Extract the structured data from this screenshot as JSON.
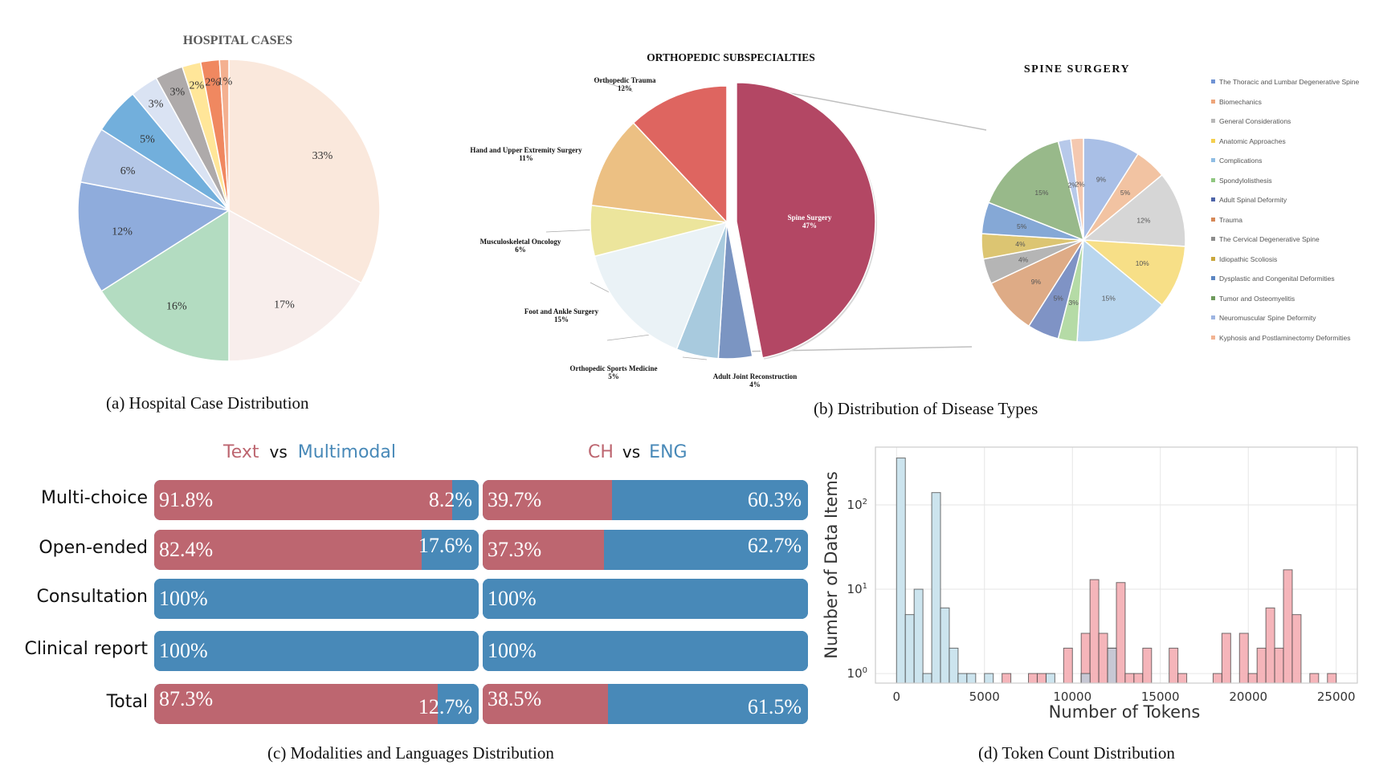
{
  "colors": {
    "text_red": "#bd6670",
    "multimodal_blue": "#4889b8",
    "hist_blue": "#cce4ee",
    "hist_pink": "#f4adb2",
    "hist_overlap": "#c7c8d4"
  },
  "chart_data": [
    {
      "id": "a",
      "type": "pie",
      "title": "HOSPITAL CASES",
      "caption": "(a) Hospital Case Distribution",
      "slices": [
        {
          "label": "33%",
          "value": 33,
          "color": "#fae8dc"
        },
        {
          "label": "17%",
          "value": 17,
          "color": "#f8eeec"
        },
        {
          "label": "16%",
          "value": 16,
          "color": "#b3dcc1"
        },
        {
          "label": "12%",
          "value": 12,
          "color": "#8facdc"
        },
        {
          "label": "6%",
          "value": 6,
          "color": "#b4c7e7"
        },
        {
          "label": "5%",
          "value": 5,
          "color": "#72afdc"
        },
        {
          "label": "3%",
          "value": 3,
          "color": "#dae3f3"
        },
        {
          "label": "3%",
          "value": 3,
          "color": "#aeaaaa"
        },
        {
          "label": "2%",
          "value": 2,
          "color": "#ffe699"
        },
        {
          "label": "2%",
          "value": 2,
          "color": "#f08860"
        },
        {
          "label": "1%",
          "value": 1,
          "color": "#f4b090"
        }
      ]
    },
    {
      "id": "b1",
      "type": "pie",
      "title": "ORTHOPEDIC SUBSPECIALTIES",
      "caption": "(b)  Distribution of Disease Types",
      "slices": [
        {
          "label": "Spine Surgery",
          "pct": "47%",
          "value": 47,
          "color": "#b34764",
          "exploded": true
        },
        {
          "label": "Adult Joint Reconstruction",
          "pct": "4%",
          "value": 4,
          "color": "#7b95c2"
        },
        {
          "label": "Orthopedic Sports Medicine",
          "pct": "5%",
          "value": 5,
          "color": "#a8cade"
        },
        {
          "label": "Foot and Ankle Surgery",
          "pct": "15%",
          "value": 15,
          "color": "#eaf2f6"
        },
        {
          "label": "Musculoskeletal Oncology",
          "pct": "6%",
          "value": 6,
          "color": "#ece59c"
        },
        {
          "label": "Hand and Upper Extremity Surgery",
          "pct": "11%",
          "value": 11,
          "color": "#ecc083"
        },
        {
          "label": "Orthopedic Trauma",
          "pct": "12%",
          "value": 12,
          "color": "#de6560"
        }
      ]
    },
    {
      "id": "b2",
      "type": "pie",
      "title": "SPINE SURGERY",
      "slices": [
        {
          "label": "The Thoracic and Lumbar Degenerative Spine",
          "pct": "9%",
          "value": 9,
          "color": "#a9bfe6"
        },
        {
          "label": "Biomechanics",
          "pct": "5%",
          "value": 5,
          "color": "#f2c3a2"
        },
        {
          "label": "General Considerations",
          "pct": "12%",
          "value": 12,
          "color": "#d6d6d6"
        },
        {
          "label": "Anatomic Approaches",
          "pct": "10%",
          "value": 10,
          "color": "#f7df87"
        },
        {
          "label": "Complications",
          "pct": "15%",
          "value": 15,
          "color": "#b9d6ee"
        },
        {
          "label": "Spondylolisthesis",
          "pct": "3%",
          "value": 3,
          "color": "#b5dba6"
        },
        {
          "label": "Adult Spinal Deformity",
          "pct": "5%",
          "value": 5,
          "color": "#7f93c5"
        },
        {
          "label": "Trauma",
          "pct": "9%",
          "value": 9,
          "color": "#deab86"
        },
        {
          "label": "The Cervical Degenerative Spine",
          "pct": "4%",
          "value": 4,
          "color": "#b5b5b5"
        },
        {
          "label": "Idiopathic Scoliosis",
          "pct": "4%",
          "value": 4,
          "color": "#dcc572"
        },
        {
          "label": "Dysplastic and Congenital Deformities",
          "pct": "5%",
          "value": 5,
          "color": "#85a8d6"
        },
        {
          "label": "Tumor and Osteomyelitis",
          "pct": "15%",
          "value": 15,
          "color": "#98b98a"
        },
        {
          "label": "Neuromuscular Spine Deformity",
          "pct": "2%",
          "value": 2,
          "color": "#b7c9ea"
        },
        {
          "label": "Kyphosis and Postlaminectomy Deformities",
          "pct": "2%",
          "value": 2,
          "color": "#f4c8b0"
        }
      ],
      "legend": [
        {
          "label": "The Thoracic and Lumbar Degenerative Spine",
          "color": "#6f93d4"
        },
        {
          "label": "Biomechanics",
          "color": "#eea57a"
        },
        {
          "label": "General Considerations",
          "color": "#b8b8b8"
        },
        {
          "label": "Anatomic Approaches",
          "color": "#f4cf4f"
        },
        {
          "label": "Complications",
          "color": "#8fbde4"
        },
        {
          "label": "Spondylolisthesis",
          "color": "#8fc780"
        },
        {
          "label": "Adult Spinal Deformity",
          "color": "#4d64a8"
        },
        {
          "label": "Trauma",
          "color": "#d68857"
        },
        {
          "label": "The Cervical Degenerative Spine",
          "color": "#8c8c8c"
        },
        {
          "label": "Idiopathic Scoliosis",
          "color": "#c9a73c"
        },
        {
          "label": "Dysplastic and Congenital Deformities",
          "color": "#5b85c2"
        },
        {
          "label": "Tumor and Osteomyelitis",
          "color": "#6e9a5c"
        },
        {
          "label": "Neuromuscular Spine Deformity",
          "color": "#9db5e2"
        },
        {
          "label": "Kyphosis and Postlaminectomy Deformities",
          "color": "#f2b392"
        }
      ]
    },
    {
      "id": "c",
      "type": "bar",
      "orientation": "horizontal-stacked-100",
      "caption": "(c) Modalities and Languages Distribution",
      "panels": [
        {
          "header": [
            {
              "text": "Text",
              "color": "#bd6670"
            },
            {
              "text": "vs",
              "color": "#111111"
            },
            {
              "text": "Multimodal",
              "color": "#4889b8"
            }
          ],
          "series": [
            "Text",
            "Multimodal"
          ]
        },
        {
          "header": [
            {
              "text": "CH",
              "color": "#bd6670"
            },
            {
              "text": "vs",
              "color": "#111111"
            },
            {
              "text": "ENG",
              "color": "#4889b8"
            }
          ],
          "series": [
            "CH",
            "ENG"
          ]
        }
      ],
      "categories": [
        "Multi-choice",
        "Open-ended",
        "Consultation",
        "Clinical report",
        "Total"
      ],
      "rows": [
        {
          "category": "Multi-choice",
          "left": {
            "a": 91.8,
            "b": 8.2,
            "a_label": "91.8%",
            "b_label": "8.2%"
          },
          "right": {
            "a": 39.7,
            "b": 60.3,
            "a_label": "39.7%",
            "b_label": "60.3%"
          }
        },
        {
          "category": "Open-ended",
          "left": {
            "a": 82.4,
            "b": 17.6,
            "a_label": "82.4%",
            "b_label": "17.6%"
          },
          "right": {
            "a": 37.3,
            "b": 62.7,
            "a_label": "37.3%",
            "b_label": "62.7%"
          }
        },
        {
          "category": "Consultation",
          "left": {
            "a": 0,
            "b": 100,
            "a_label": "",
            "b_label": "100%"
          },
          "right": {
            "a": 0,
            "b": 100,
            "a_label": "",
            "b_label": "100%"
          }
        },
        {
          "category": "Clinical report",
          "left": {
            "a": 0,
            "b": 100,
            "a_label": "",
            "b_label": "100%"
          },
          "right": {
            "a": 0,
            "b": 100,
            "a_label": "",
            "b_label": "100%"
          }
        },
        {
          "category": "Total",
          "left": {
            "a": 87.3,
            "b": 12.7,
            "a_label": "87.3%",
            "b_label": "12.7%"
          },
          "right": {
            "a": 38.5,
            "b": 61.5,
            "a_label": "38.5%",
            "b_label": "61.5%"
          }
        }
      ]
    },
    {
      "id": "d",
      "type": "bar",
      "subtype": "histogram",
      "caption": "(d) Token Count Distribution",
      "xlabel": "Number of Tokens",
      "ylabel": "Number of Data Items",
      "yscale": "log",
      "xlim": [
        -1200,
        26200
      ],
      "ylim": [
        0.77,
        485
      ],
      "xticks": [
        0,
        5000,
        10000,
        15000,
        20000,
        25000
      ],
      "xtick_labels": [
        "0",
        "5000",
        "10000",
        "15000",
        "20000",
        "25000"
      ],
      "yticks": [
        1,
        10,
        100
      ],
      "ytick_labels": [
        {
          "base": "10",
          "exp": "0"
        },
        {
          "base": "10",
          "exp": "1"
        },
        {
          "base": "10",
          "exp": "2"
        }
      ],
      "grid": true,
      "bin_width": 500,
      "series": [
        {
          "name": "blue",
          "color": "#cce4ee",
          "bins": [
            [
              0,
              360
            ],
            [
              500,
              5
            ],
            [
              1000,
              10
            ],
            [
              1500,
              1
            ],
            [
              2000,
              140
            ],
            [
              2500,
              6
            ],
            [
              3000,
              2
            ],
            [
              3500,
              1
            ],
            [
              4000,
              1
            ],
            [
              5000,
              1
            ],
            [
              8500,
              1
            ],
            [
              10500,
              1
            ],
            [
              12000,
              2
            ]
          ]
        },
        {
          "name": "pink",
          "color": "#f4adb2",
          "bins": [
            [
              6000,
              1
            ],
            [
              7500,
              1
            ],
            [
              8000,
              1
            ],
            [
              9500,
              2
            ],
            [
              10500,
              3
            ],
            [
              11000,
              13
            ],
            [
              11500,
              3
            ],
            [
              12000,
              2
            ],
            [
              12500,
              12
            ],
            [
              13000,
              1
            ],
            [
              13500,
              1
            ],
            [
              14000,
              2
            ],
            [
              15500,
              2
            ],
            [
              16000,
              1
            ],
            [
              18000,
              1
            ],
            [
              18500,
              3
            ],
            [
              19500,
              3
            ],
            [
              20000,
              1
            ],
            [
              20500,
              2
            ],
            [
              21000,
              6
            ],
            [
              21500,
              2
            ],
            [
              22000,
              17
            ],
            [
              22500,
              5
            ],
            [
              23500,
              1
            ],
            [
              24500,
              1
            ]
          ]
        }
      ]
    }
  ]
}
